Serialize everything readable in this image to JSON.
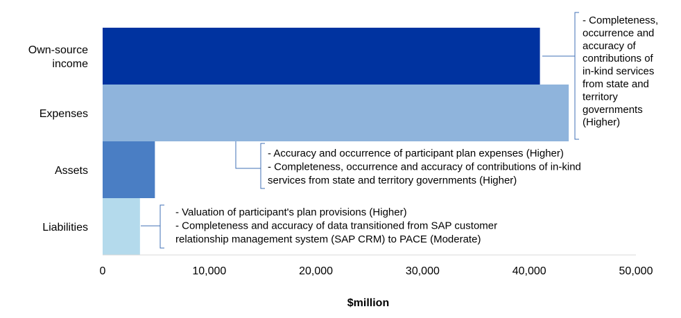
{
  "chart_data": {
    "type": "bar",
    "orientation": "horizontal",
    "categories": [
      "Own-source\nincome",
      "Expenses",
      "Assets",
      "Liabilities"
    ],
    "values": [
      41000,
      43700,
      4900,
      3500
    ],
    "colors": [
      "#0033A0",
      "#8FB4DC",
      "#4A7EC4",
      "#B4DAEC"
    ],
    "xlabel": "$million",
    "xlim": [
      0,
      50000
    ],
    "xticks": [
      0,
      10000,
      20000,
      30000,
      40000,
      50000
    ],
    "xtick_labels": [
      "0",
      "10,000",
      "20,000",
      "30,000",
      "40,000",
      "50,000"
    ],
    "grid": false,
    "annotations": [
      {
        "category_index": 0,
        "lines": [
          "- Completeness,",
          "occurrence and",
          "accuracy of",
          "contributions of",
          "in-kind services",
          "from state and",
          "territory",
          "governments",
          "(Higher)"
        ]
      },
      {
        "category_index": 1,
        "lines": [
          "- Accuracy and occurrence of participant plan expenses (Higher)",
          "- Completeness, occurrence and accuracy of contributions of in-kind",
          "services from state and territory governments (Higher)"
        ]
      },
      {
        "category_index": 3,
        "lines": [
          "- Valuation of participant's plan provisions (Higher)",
          "- Completeness and accuracy of data transitioned from SAP customer",
          "relationship management system (SAP CRM) to PACE (Moderate)"
        ]
      }
    ],
    "bracket_color": "#3F6FB5"
  }
}
